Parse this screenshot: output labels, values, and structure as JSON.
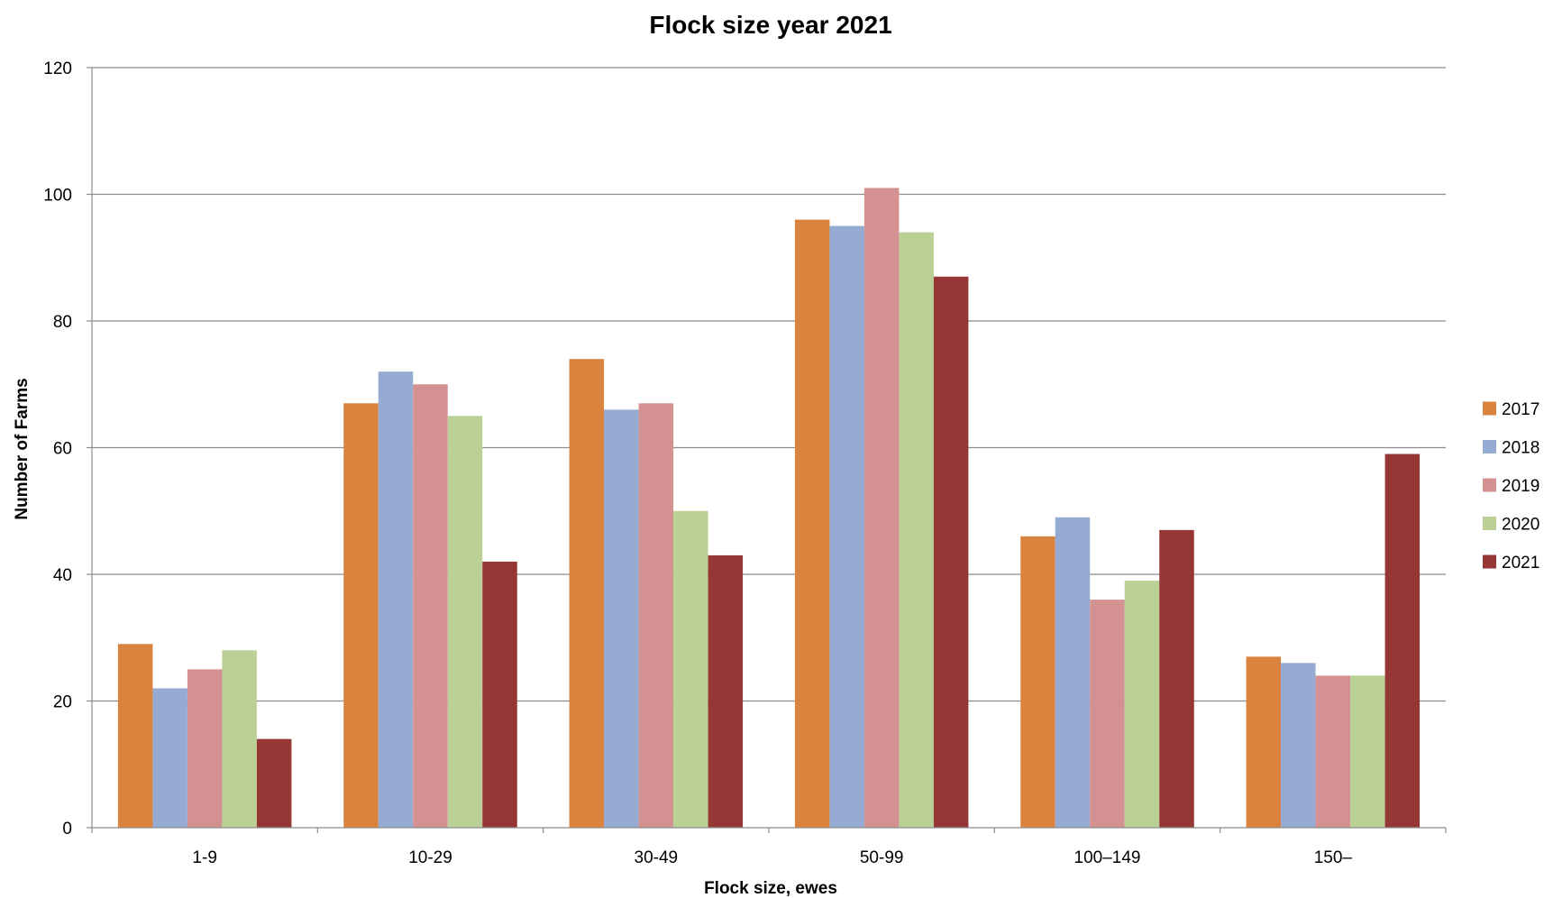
{
  "chart_data": {
    "type": "bar",
    "title": "Flock size year 2021",
    "xlabel": "Flock size, ewes",
    "ylabel": "Number of Farms",
    "ylim": [
      0,
      120
    ],
    "yticks": [
      0,
      20,
      40,
      60,
      80,
      100,
      120
    ],
    "grid": true,
    "legend_position": "right",
    "categories": [
      "1-9",
      "10-29",
      "30-49",
      "50-99",
      "100–149",
      "150–"
    ],
    "series": [
      {
        "name": "2017",
        "color": "#DA833F",
        "values": [
          29,
          67,
          74,
          96,
          46,
          27
        ]
      },
      {
        "name": "2018",
        "color": "#95ABD2",
        "values": [
          22,
          72,
          66,
          95,
          49,
          26
        ]
      },
      {
        "name": "2019",
        "color": "#D49191",
        "values": [
          25,
          70,
          67,
          101,
          36,
          24
        ]
      },
      {
        "name": "2020",
        "color": "#BAD094",
        "values": [
          28,
          65,
          50,
          94,
          39,
          24
        ]
      },
      {
        "name": "2021",
        "color": "#953735",
        "values": [
          14,
          42,
          43,
          87,
          47,
          59
        ]
      }
    ]
  }
}
